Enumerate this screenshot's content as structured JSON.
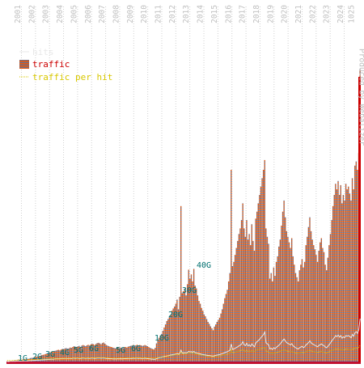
{
  "chart_data": {
    "type": "bar",
    "title": "",
    "xlabel": "",
    "ylabel": "",
    "legend": {
      "placement": "top-left",
      "entries": [
        {
          "label": "hits",
          "color": "#e8e8e8"
        },
        {
          "label": "traffic",
          "color": "#cc0000"
        },
        {
          "label": "traffic per hit",
          "color": "#d8c800"
        }
      ]
    },
    "bar_colors": {
      "fill": "#6e6e88",
      "stripe": "#e45a10",
      "base": "#c01030"
    },
    "grid": true,
    "grid_color": "#d0d0d0",
    "year_label_color": "#c0c0c0",
    "value_label_color": "#007070",
    "years": [
      "2001",
      "2002",
      "2003",
      "2004",
      "2005",
      "2006",
      "2007",
      "2008",
      "2009",
      "2010",
      "2011",
      "2012",
      "2013",
      "2014",
      "2015",
      "2016",
      "2017",
      "2018",
      "2019",
      "2020",
      "2021",
      "2022",
      "2023",
      "2024"
    ],
    "corner_label": "1025",
    "side_annotation": "Produced by Webalizer",
    "y_labels": [
      "1G",
      "2G",
      "3G",
      "4G",
      "5G",
      "6G",
      "5G",
      "6G",
      "10G",
      "20G",
      "30G",
      "40G"
    ],
    "traffic_GB": [
      0.3,
      0.3,
      0.4,
      0.3,
      0.5,
      0.6,
      0.7,
      0.7,
      0.8,
      1.0,
      0.9,
      0.9,
      1.0,
      1.1,
      1.2,
      1.0,
      1.2,
      1.3,
      1.5,
      1.6,
      1.6,
      1.8,
      1.9,
      2.0,
      2.1,
      2.3,
      2.4,
      2.6,
      2.7,
      2.8,
      3.0,
      3.2,
      3.3,
      3.5,
      3.6,
      3.8,
      3.9,
      4.1,
      4.2,
      4.4,
      4.5,
      4.3,
      4.6,
      4.8,
      4.7,
      5.0,
      5.1,
      4.9,
      5.0,
      5.3,
      5.2,
      5.5,
      5.8,
      5.6,
      5.4,
      5.7,
      5.9,
      5.5,
      6.0,
      6.2,
      6.0,
      5.8,
      6.1,
      6.3,
      6.0,
      6.4,
      6.7,
      6.5,
      6.2,
      6.6,
      6.9,
      7.0,
      6.8,
      6.5,
      6.9,
      7.1,
      6.7,
      6.2,
      6.0,
      5.8,
      5.6,
      5.5,
      5.3,
      5.2,
      5.0,
      5.2,
      5.4,
      5.1,
      5.3,
      5.0,
      5.2,
      5.4,
      5.5,
      5.3,
      5.6,
      5.8,
      5.9,
      6.0,
      6.2,
      5.8,
      6.1,
      6.3,
      6.0,
      6.2,
      6.1,
      5.9,
      6.0,
      6.2,
      6.0,
      5.8,
      5.5,
      5.2,
      5.0,
      4.8,
      4.6,
      5.2,
      6.8,
      8.0,
      8.8,
      9.6,
      10.2,
      11.3,
      12.5,
      13.6,
      14.8,
      15.5,
      16.2,
      17.0,
      18.5,
      19.3,
      20.0,
      21.0,
      22.5,
      19.0,
      23.5,
      56.0,
      24.8,
      25.5,
      26.5,
      24.0,
      28.0,
      33.2,
      30.0,
      31.5,
      29.0,
      33.5,
      27.5,
      26.5,
      24.0,
      22.0,
      21.0,
      19.5,
      18.5,
      17.2,
      16.5,
      15.5,
      14.5,
      13.8,
      12.9,
      12.2,
      11.5,
      12.8,
      13.6,
      14.5,
      15.2,
      16.0,
      17.5,
      19.0,
      21.0,
      23.0,
      24.5,
      26.0,
      29.0,
      32.0,
      69.0,
      34.5,
      36.0,
      38.5,
      41.0,
      43.5,
      46.0,
      48.0,
      51.0,
      57.0,
      48.0,
      45.0,
      51.0,
      44.0,
      46.0,
      42.0,
      49.5,
      43.5,
      40.0,
      51.5,
      54.0,
      57.0,
      60.0,
      63.0,
      66.0,
      69.0,
      72.5,
      48.0,
      45.0,
      42.5,
      30.0,
      32.0,
      29.0,
      34.0,
      31.0,
      36.0,
      38.0,
      41.5,
      44.0,
      49.0,
      54.0,
      58.0,
      52.0,
      47.0,
      45.0,
      43.0,
      41.0,
      44.5,
      38.0,
      35.0,
      32.0,
      30.5,
      29.0,
      33.0,
      35.0,
      37.0,
      34.0,
      36.0,
      42.0,
      45.0,
      48.5,
      52.0,
      47.0,
      44.0,
      42.0,
      40.5,
      38.5,
      36.0,
      40.0,
      43.0,
      44.5,
      41.0,
      39.5,
      35.0,
      33.0,
      37.5,
      42.0,
      46.0,
      51.0,
      56.0,
      60.0,
      64.0,
      62.0,
      65.0,
      60.0,
      63.5,
      57.0,
      60.0,
      58.0,
      64.0,
      62.0,
      63.0,
      60.5,
      58.0,
      66.0,
      62.0,
      70.5,
      72.0,
      69.0,
      75.0,
      105.0
    ],
    "hits_relative": [
      0.4,
      0.3,
      0.4,
      0.5,
      0.4,
      0.5,
      0.4,
      0.5,
      0.5,
      0.6,
      0.5,
      0.6,
      0.6,
      0.6,
      0.7,
      0.6,
      0.6,
      0.7,
      0.7,
      0.7,
      0.8,
      0.8,
      0.8,
      0.9,
      0.9,
      0.9,
      1.0,
      1.0,
      1.0,
      1.1,
      1.1,
      1.2,
      1.2,
      1.2,
      1.3,
      1.3,
      1.3,
      1.4,
      1.4,
      1.5,
      1.4,
      1.5,
      1.5,
      1.6,
      1.5,
      1.6,
      1.6,
      1.5,
      1.6,
      1.6,
      1.5,
      1.7,
      1.7,
      1.6,
      1.7,
      1.7,
      1.6,
      1.6,
      1.7,
      1.8,
      1.7,
      1.6,
      1.7,
      1.7,
      1.6,
      1.7,
      1.8,
      1.7,
      1.6,
      1.7,
      1.8,
      1.8,
      1.8,
      1.7,
      1.8,
      1.8,
      1.7,
      1.6,
      1.6,
      1.5,
      1.5,
      1.5,
      1.4,
      1.4,
      1.4,
      1.4,
      1.5,
      1.4,
      1.5,
      1.4,
      1.5,
      1.5,
      1.5,
      1.5,
      1.6,
      1.6,
      1.6,
      1.6,
      1.7,
      1.6,
      1.7,
      1.7,
      1.6,
      1.7,
      1.6,
      1.6,
      1.6,
      1.7,
      1.6,
      1.5,
      1.5,
      1.4,
      1.3,
      1.3,
      1.2,
      1.3,
      1.5,
      1.7,
      1.9,
      2.0,
      2.1,
      2.3,
      2.4,
      2.5,
      2.6,
      2.7,
      2.9,
      3.0,
      3.1,
      3.2,
      3.3,
      3.4,
      3.6,
      3.4,
      3.7,
      5.0,
      3.8,
      3.9,
      4.0,
      3.8,
      4.1,
      4.5,
      4.3,
      4.4,
      4.2,
      4.5,
      4.0,
      3.9,
      3.7,
      3.6,
      3.5,
      3.3,
      3.2,
      3.1,
      3.0,
      2.9,
      2.8,
      2.8,
      2.7,
      2.6,
      2.6,
      2.7,
      2.9,
      3.0,
      3.1,
      3.2,
      3.4,
      3.6,
      3.8,
      4.0,
      4.2,
      4.4,
      4.7,
      5.0,
      7.5,
      5.3,
      5.5,
      5.8,
      6.1,
      6.4,
      6.8,
      7.1,
      7.5,
      8.5,
      7.2,
      6.9,
      7.8,
      6.8,
      7.2,
      6.6,
      7.6,
      6.9,
      6.4,
      8.0,
      8.5,
      9.0,
      9.5,
      10.2,
      10.8,
      11.5,
      12.5,
      8.0,
      7.6,
      7.2,
      5.5,
      5.8,
      5.3,
      6.0,
      5.6,
      6.2,
      6.6,
      7.1,
      7.6,
      8.3,
      9.0,
      9.6,
      8.8,
      8.1,
      7.8,
      7.5,
      7.2,
      7.7,
      6.8,
      6.4,
      6.0,
      5.7,
      5.5,
      6.0,
      6.3,
      6.6,
      6.1,
      6.4,
      7.2,
      7.6,
      8.2,
      8.8,
      8.0,
      7.6,
      7.3,
      7.0,
      6.7,
      6.4,
      6.9,
      7.3,
      7.6,
      7.1,
      6.9,
      6.3,
      6.0,
      6.6,
      7.3,
      8.0,
      8.8,
      9.5,
      10.2,
      11.0,
      10.6,
      11.2,
      10.4,
      11.0,
      10.0,
      10.5,
      10.2,
      11.0,
      10.8,
      11.0,
      10.6,
      10.2,
      11.5,
      10.8,
      12.2,
      12.6,
      12.0,
      13.5,
      18.0
    ],
    "traffic_per_hit_relative": [
      1.5,
      1.6,
      1.5,
      1.4,
      1.6,
      1.6,
      1.7,
      1.7,
      1.8,
      1.9,
      1.8,
      1.7,
      1.8,
      1.9,
      1.9,
      1.8,
      2.0,
      2.0,
      2.1,
      2.2,
      2.2,
      2.3,
      2.4,
      2.4,
      2.4,
      2.5,
      2.5,
      2.6,
      2.6,
      2.7,
      2.7,
      2.8,
      2.8,
      2.9,
      2.9,
      3.0,
      3.0,
      3.0,
      3.1,
      3.1,
      3.2,
      3.1,
      3.2,
      3.2,
      3.2,
      3.3,
      3.3,
      3.2,
      3.3,
      3.4,
      3.4,
      3.4,
      3.5,
      3.5,
      3.4,
      3.5,
      3.6,
      3.5,
      3.6,
      3.6,
      3.6,
      3.5,
      3.6,
      3.7,
      3.6,
      3.7,
      3.8,
      3.7,
      3.6,
      3.7,
      3.8,
      3.9,
      3.8,
      3.7,
      3.8,
      3.9,
      3.8,
      3.7,
      3.6,
      3.6,
      3.5,
      3.5,
      3.4,
      3.4,
      3.4,
      3.5,
      3.5,
      3.4,
      3.5,
      3.4,
      3.5,
      3.5,
      3.6,
      3.5,
      3.6,
      3.6,
      3.7,
      3.7,
      3.8,
      3.6,
      3.7,
      3.8,
      3.7,
      3.8,
      3.7,
      3.6,
      3.7,
      3.8,
      3.7,
      3.6,
      3.5,
      3.5,
      3.4,
      3.4,
      3.3,
      3.4,
      3.6,
      3.8,
      4.0,
      4.2,
      4.3,
      4.5,
      4.6,
      4.8,
      5.0,
      5.2,
      5.3,
      5.5,
      5.8,
      6.0,
      6.2,
      6.4,
      6.6,
      6.0,
      6.8,
      8.5,
      7.0,
      7.1,
      7.2,
      6.9,
      7.4,
      8.0,
      7.6,
      7.8,
      7.5,
      8.0,
      7.2,
      7.0,
      6.7,
      6.4,
      6.2,
      6.0,
      5.8,
      5.6,
      5.4,
      5.2,
      5.0,
      4.9,
      4.8,
      4.6,
      4.5,
      4.7,
      4.9,
      5.0,
      5.2,
      5.3,
      5.5,
      5.8,
      6.0,
      6.3,
      6.5,
      6.8,
      7.2,
      7.6,
      10.5,
      7.9,
      8.1,
      8.4,
      8.7,
      9.0,
      9.3,
      9.6,
      9.9,
      10.6,
      9.4,
      9.1,
      9.9,
      9.0,
      9.2,
      8.8,
      9.7,
      9.0,
      8.6,
      10.0,
      10.3,
      10.6,
      11.0,
      11.3,
      11.6,
      11.9,
      12.3,
      9.3,
      9.0,
      8.7,
      7.5,
      7.7,
      7.3,
      7.9,
      7.5,
      8.1,
      8.3,
      8.7,
      9.0,
      9.6,
      10.1,
      10.5,
      9.8,
      9.3,
      9.1,
      8.9,
      8.7,
      9.0,
      8.4,
      8.1,
      7.7,
      7.6,
      7.4,
      7.8,
      8.0,
      8.2,
      7.9,
      8.1,
      8.8,
      9.1,
      9.5,
      9.8,
      9.3,
      9.0,
      8.8,
      8.6,
      8.4,
      8.1,
      8.5,
      8.8,
      9.0,
      8.6,
      8.4,
      7.9,
      7.6,
      8.2,
      8.7,
      9.2,
      9.8,
      10.2,
      10.6,
      11.0,
      10.8,
      11.1,
      10.6,
      10.9,
      10.3,
      10.6,
      10.4,
      11.0,
      10.8,
      10.9,
      10.6,
      10.3,
      11.2,
      10.8,
      11.7,
      11.9,
      11.5,
      12.3,
      14.0
    ]
  }
}
